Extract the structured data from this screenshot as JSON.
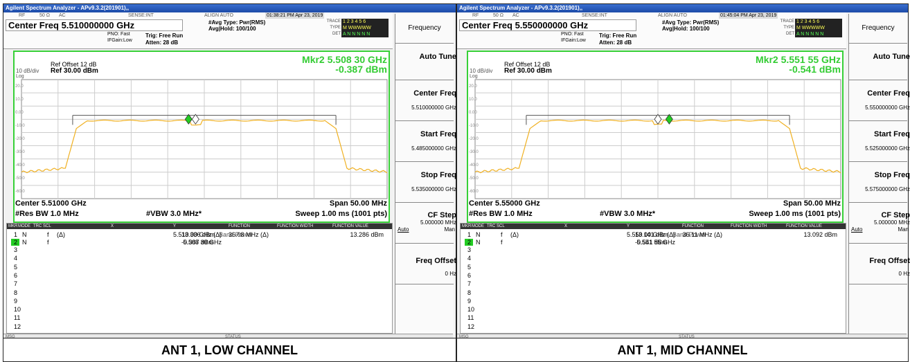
{
  "panels": [
    {
      "caption": "ANT 1, LOW CHANNEL",
      "window_title": "Agilent Spectrum Analyzer - APv9.3.2(201901),,",
      "status_row": [
        "RF",
        "50 Ω",
        "AC",
        "SENSE:INT",
        "ALIGN AUTO"
      ],
      "timestamp": "01:38:21 PM Apr 23, 2019",
      "center_freq": "Center Freq 5.510000000 GHz",
      "pno": "PNO: Fast",
      "ifgain": "IFGain:Low",
      "trig": "Trig: Free Run",
      "atten": "Atten: 28 dB",
      "avg_type": "#Avg Type: Pwr(RMS)",
      "avg_hold": "Avg|Hold: 100/100",
      "trace_labels": [
        "TRACE",
        "TYPE",
        "DET"
      ],
      "trace_values": [
        "1 2 3 4 5 6",
        "M WWWWW",
        "A N N N N N"
      ],
      "ref_offset": "Ref Offset 12 dB",
      "scale": "10 dB/div",
      "ref_level": "Ref 30.00 dBm",
      "log": "Log",
      "marker_freq": "Mkr2 5.508 30 GHz",
      "marker_level": "-0.387 dBm",
      "y_labels": [
        "20.0",
        "10.0",
        "0.00",
        "-10.0",
        "-20.0",
        "-30.0",
        "-40.0",
        "-50.0",
        "-60.0"
      ],
      "center": "Center 5.51000 GHz",
      "span": "Span 50.00 MHz",
      "res_bw": "#Res BW 1.0 MHz",
      "vbw": "#VBW 3.0 MHz*",
      "sweep": "Sweep  1.00 ms (1001 pts)",
      "table_header": [
        "MKR",
        "MODE",
        "TRC",
        "SCL",
        "X",
        "Y",
        "FUNCTION",
        "FUNCTION WIDTH",
        "FUNCTION VALUE"
      ],
      "marker_rows": [
        {
          "num": "1",
          "mode": "N",
          "trc": "f",
          "scl": "(Δ)",
          "x": "5.510 00 GHz (Δ)",
          "y": "13.336 dBm",
          "function": "Band Power",
          "width": "36.08 MHz (Δ)",
          "value": "13.286 dBm"
        },
        {
          "num": "2",
          "mode": "N",
          "trc": "f",
          "x": "5.508 30 GHz",
          "y": "-0.387 dBm"
        }
      ],
      "row_numbers": [
        "3",
        "4",
        "5",
        "6",
        "7",
        "8",
        "9",
        "10",
        "11",
        "12"
      ],
      "msg": "MSG",
      "status": "STATUS",
      "softkeys": {
        "menu": "Frequency",
        "auto_tune": "Auto Tune",
        "center": "Center Freq",
        "center_value": "5.510000000 GHz",
        "start": "Start Freq",
        "start_value": "5.485000000 GHz",
        "stop": "Stop Freq",
        "stop_value": "5.535000000 GHz",
        "cf_step": "CF Step",
        "cf_step_value": "5.000000 MHz",
        "auto": "Auto",
        "man": "Man",
        "offset": "Freq Offset",
        "offset_value": "0 Hz"
      }
    },
    {
      "caption": "ANT 1, MID CHANNEL",
      "window_title": "Agilent Spectrum Analyzer - APv9.3.2(201901),,",
      "status_row": [
        "RF",
        "50 Ω",
        "AC",
        "SENSE:INT",
        "ALIGN AUTO"
      ],
      "timestamp": "01:45:04 PM Apr 23, 2019",
      "center_freq": "Center Freq 5.550000000 GHz",
      "pno": "PNO: Fast",
      "ifgain": "IFGain:Low",
      "trig": "Trig: Free Run",
      "atten": "Atten: 28 dB",
      "avg_type": "#Avg Type: Pwr(RMS)",
      "avg_hold": "Avg|Hold: 100/100",
      "trace_labels": [
        "TRACE",
        "TYPE",
        "DET"
      ],
      "trace_values": [
        "1 2 3 4 5 6",
        "M WWWWW",
        "A N N N N N"
      ],
      "ref_offset": "Ref Offset 12 dB",
      "scale": "10 dB/div",
      "ref_level": "Ref 30.00 dBm",
      "log": "Log",
      "marker_freq": "Mkr2 5.551 55 GHz",
      "marker_level": "-0.541 dBm",
      "y_labels": [
        "20.0",
        "10.0",
        "0.00",
        "-10.0",
        "-20.0",
        "-30.0",
        "-40.0",
        "-50.0",
        "-60.0"
      ],
      "center": "Center 5.55000 GHz",
      "span": "Span 50.00 MHz",
      "res_bw": "#Res BW 1.0 MHz",
      "vbw": "#VBW 3.0 MHz*",
      "sweep": "Sweep  1.00 ms (1001 pts)",
      "table_header": [
        "MKR",
        "MODE",
        "TRC",
        "SCL",
        "X",
        "Y",
        "FUNCTION",
        "FUNCTION WIDTH",
        "FUNCTION VALUE"
      ],
      "marker_rows": [
        {
          "num": "1",
          "mode": "N",
          "trc": "f",
          "scl": "(Δ)",
          "x": "5.550 00 GHz (Δ)",
          "y": "13.141 dBm",
          "function": "Band Power",
          "width": "36.11 MHz (Δ)",
          "value": "13.092 dBm"
        },
        {
          "num": "2",
          "mode": "N",
          "trc": "f",
          "x": "5.551 55 GHz",
          "y": "-0.541 dBm"
        }
      ],
      "row_numbers": [
        "3",
        "4",
        "5",
        "6",
        "7",
        "8",
        "9",
        "10",
        "11",
        "12"
      ],
      "msg": "MSG",
      "status": "STATUS",
      "softkeys": {
        "menu": "Frequency",
        "auto_tune": "Auto Tune",
        "center": "Center Freq",
        "center_value": "5.550000000 GHz",
        "start": "Start Freq",
        "start_value": "5.525000000 GHz",
        "stop": "Stop Freq",
        "stop_value": "5.575000000 GHz",
        "cf_step": "CF Step",
        "cf_step_value": "5.000000 MHz",
        "auto": "Auto",
        "man": "Man",
        "offset": "Freq Offset",
        "offset_value": "0 Hz"
      }
    }
  ]
}
